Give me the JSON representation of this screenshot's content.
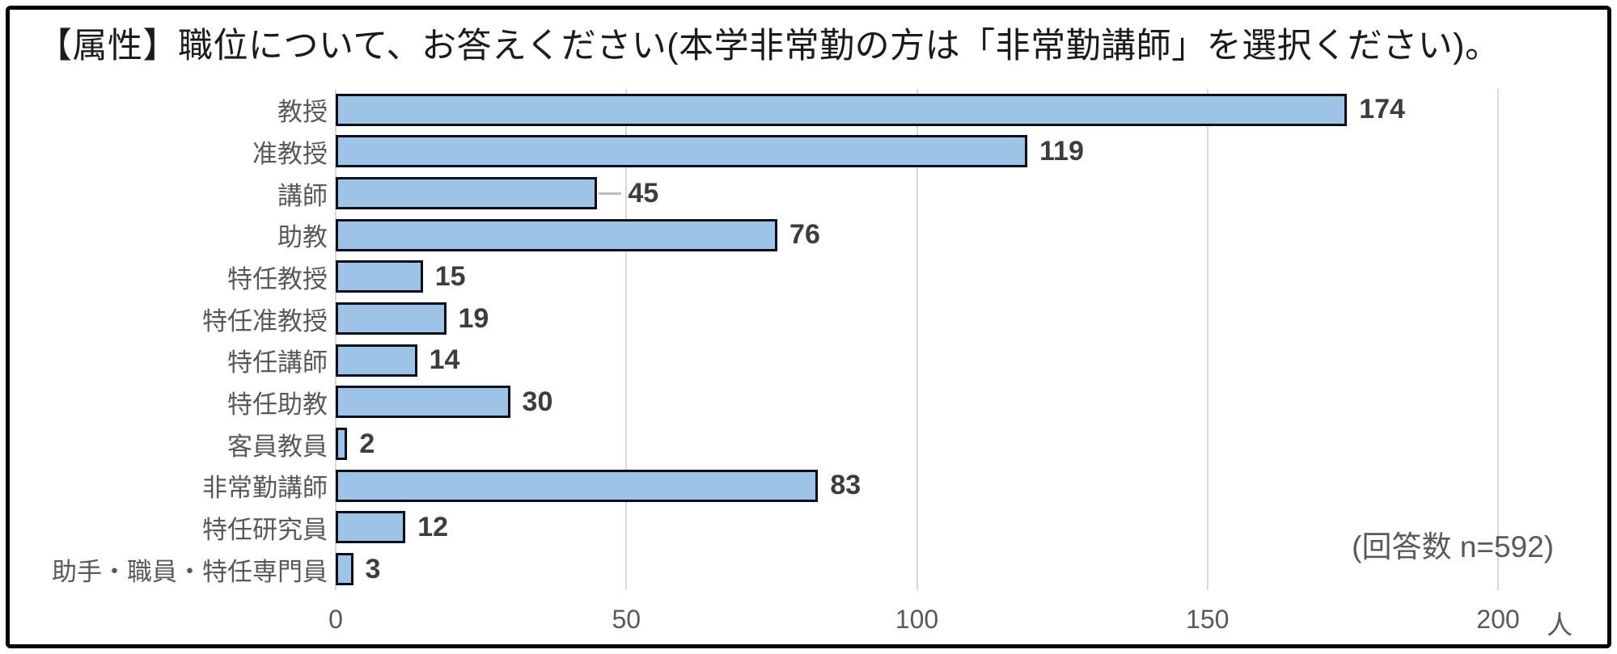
{
  "page": {
    "background": "#ffffff",
    "border_color": "#000000"
  },
  "chart_data": {
    "type": "bar",
    "orientation": "horizontal",
    "title": "【属性】職位について、お答えください(本学非常勤の方は「非常勤講師」を選択ください)。",
    "categories": [
      "教授",
      "准教授",
      "講師",
      "助教",
      "特任教授",
      "特任准教授",
      "特任講師",
      "特任助教",
      "客員教員",
      "非常勤講師",
      "特任研究員",
      "助手・職員・特任専門員"
    ],
    "values": [
      174,
      119,
      45,
      76,
      15,
      19,
      14,
      30,
      2,
      83,
      12,
      3
    ],
    "xlim": [
      0,
      200
    ],
    "x_ticks": [
      0,
      50,
      100,
      150,
      200
    ],
    "x_unit": "人",
    "annotation": "(回答数 n=592)",
    "grid": true,
    "legend": false,
    "bar_fill": "#9dc3e6",
    "bar_border": "#0a0e1a",
    "gridline_color": "#d9d9d9",
    "value_label_color": "#3d3d3d",
    "axis_label_color": "#595959",
    "leader_line_index": 2
  }
}
